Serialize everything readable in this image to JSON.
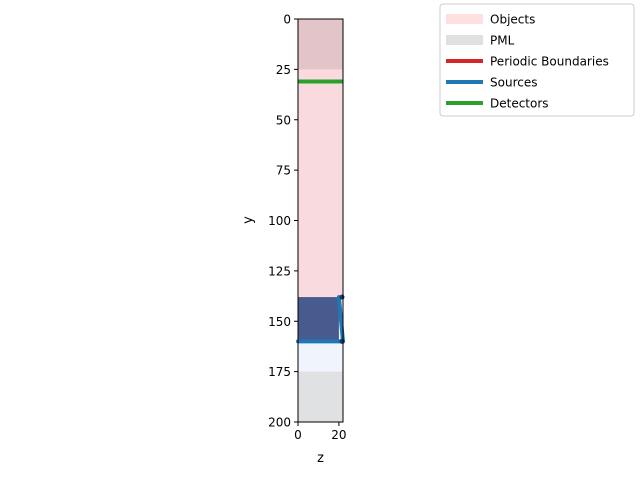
{
  "chart_data": {
    "type": "heatmap",
    "xlabel": "z",
    "ylabel": "y",
    "xlim": [
      0,
      22
    ],
    "ylim": [
      200,
      0
    ],
    "x_ticks": [
      0,
      20
    ],
    "y_ticks": [
      0,
      25,
      50,
      75,
      100,
      125,
      150,
      175,
      200
    ],
    "grid": false,
    "legend_position": "top-right",
    "legend": [
      {
        "label": "Objects",
        "kind": "patch",
        "color": "#ffe0e0"
      },
      {
        "label": "PML",
        "kind": "patch",
        "color": "#e0e0e0"
      },
      {
        "label": "Periodic Boundaries",
        "kind": "line",
        "color": "#d62728"
      },
      {
        "label": "Sources",
        "kind": "line",
        "color": "#1f77b4"
      },
      {
        "label": "Detectors",
        "kind": "line",
        "color": "#2ca02c"
      }
    ],
    "regions": [
      {
        "kind": "object",
        "z": [
          0,
          22
        ],
        "y": [
          0,
          138
        ],
        "color": "#f8d7dc",
        "opacity": 0.9
      },
      {
        "kind": "object",
        "z": [
          0,
          22
        ],
        "y": [
          138,
          175
        ],
        "color": "#eef4fd",
        "opacity": 0.9
      },
      {
        "kind": "pml",
        "z": [
          0,
          22
        ],
        "y": [
          0,
          25
        ],
        "color": "#c8a8ad",
        "opacity": 0.45
      },
      {
        "kind": "pml",
        "z": [
          0,
          22
        ],
        "y": [
          175,
          200
        ],
        "color": "#c4c8cc",
        "opacity": 0.55
      },
      {
        "kind": "object",
        "z": [
          0,
          20
        ],
        "y": [
          138,
          160
        ],
        "color": "#475b8e",
        "opacity": 1
      }
    ],
    "sources": [
      {
        "z": [
          0,
          22
        ],
        "y": [
          160,
          160
        ]
      },
      {
        "z": [
          20,
          22
        ],
        "y": [
          138,
          160
        ]
      }
    ],
    "detectors": [
      {
        "z": [
          0,
          22
        ],
        "y": [
          31,
          31
        ]
      }
    ]
  }
}
